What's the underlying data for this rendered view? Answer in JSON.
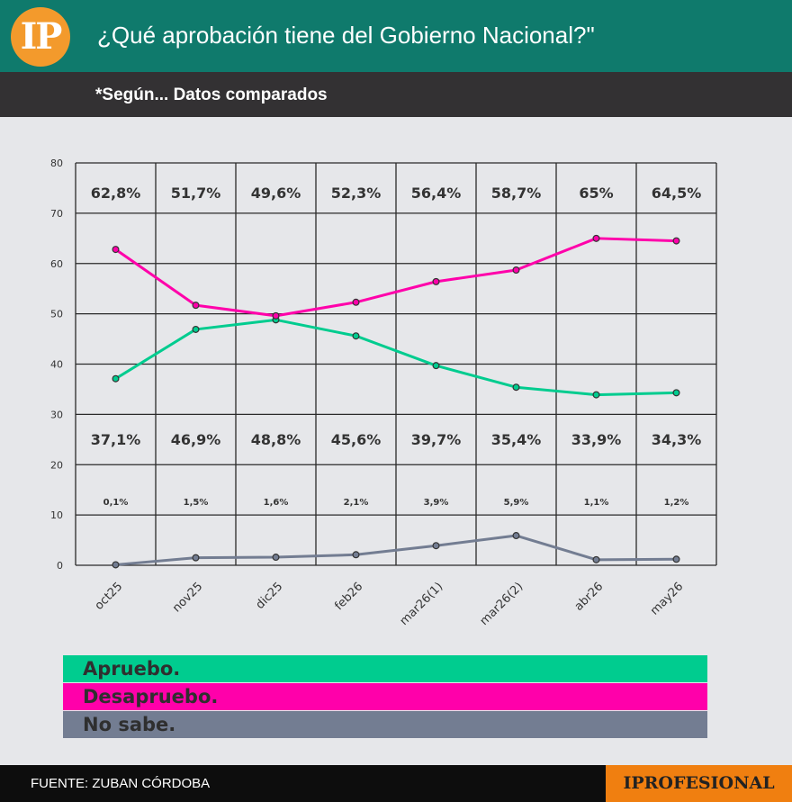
{
  "header": {
    "logo_text": "IP",
    "title": "¿Qué aprobación tiene del Gobierno Nacional?\"",
    "subtitle": "*Según... Datos comparados"
  },
  "colors": {
    "header_bg": "#0f7a6c",
    "subheader_bg": "#333133",
    "logo_bg": "#f39a2c",
    "apruebo": "#00cc8f",
    "desapruebo": "#ff00aa",
    "nosabe": "#737d92",
    "brand_bg": "#f07f10"
  },
  "chart_data": {
    "type": "line",
    "categories": [
      "oct25",
      "nov25",
      "dic25",
      "feb26",
      "mar26(1)",
      "mar26(2)",
      "abr26",
      "may26"
    ],
    "ylim": [
      0,
      80
    ],
    "yticks": [
      0,
      10,
      20,
      30,
      40,
      50,
      60,
      70,
      80
    ],
    "grid": true,
    "series": [
      {
        "name": "Apruebo.",
        "color": "#00cc8f",
        "values": [
          37.1,
          46.9,
          48.8,
          45.6,
          39.7,
          35.4,
          33.9,
          34.3
        ],
        "labels": [
          "37,1%",
          "46,9%",
          "48,8%",
          "45,6%",
          "39,7%",
          "35,4%",
          "33,9%",
          "34,3%"
        ]
      },
      {
        "name": "Desapruebo.",
        "color": "#ff00aa",
        "values": [
          62.8,
          51.7,
          49.6,
          52.3,
          56.4,
          58.7,
          65,
          64.5
        ],
        "labels": [
          "62,8%",
          "51,7%",
          "49,6%",
          "52,3%",
          "56,4%",
          "58,7%",
          "65%",
          "64,5%"
        ]
      },
      {
        "name": "No sabe.",
        "color": "#737d92",
        "values": [
          0.1,
          1.5,
          1.6,
          2.1,
          3.9,
          5.9,
          1.1,
          1.2
        ],
        "labels": [
          "0,1%",
          "1,5%",
          "1,6%",
          "2,1%",
          "3,9%",
          "5,9%",
          "1,1%",
          "1,2%"
        ]
      }
    ],
    "legend_position": "bottom"
  },
  "legend": {
    "apruebo": "Apruebo.",
    "desapruebo": "Desapruebo.",
    "nosabe": "No sabe."
  },
  "footer": {
    "source": "FUENTE: ZUBAN CÓRDOBA",
    "brand": "IPROFESIONAL"
  }
}
